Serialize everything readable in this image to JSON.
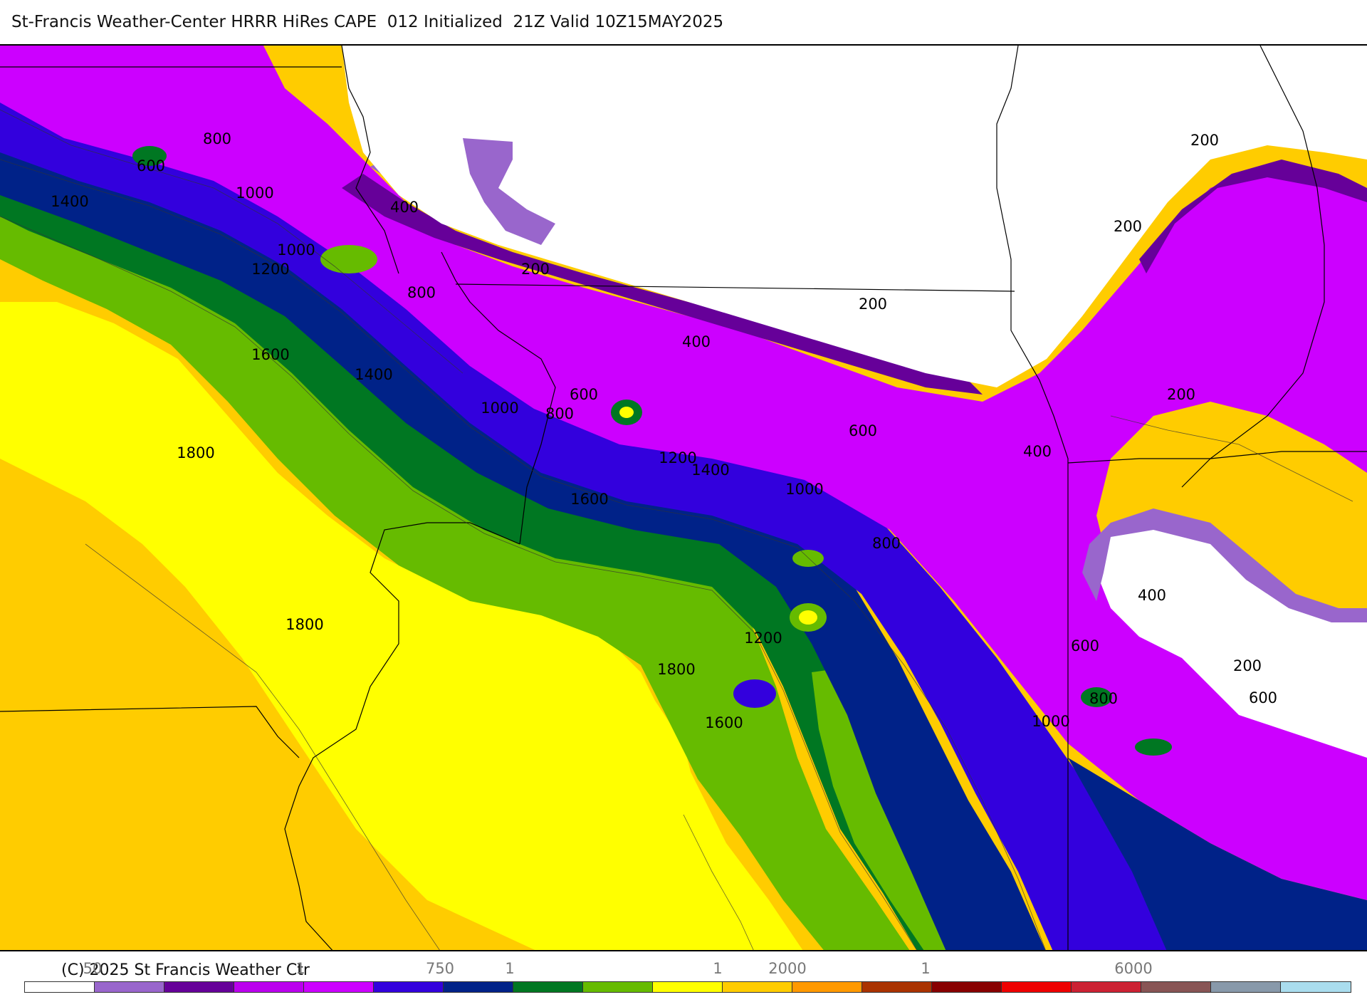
{
  "header": {
    "title": "St-Francis Weather-Center HRRR HiRes CAPE  012 Initialized  21Z Valid 10Z15MAY2025"
  },
  "map": {
    "variable": "CAPE",
    "contour_labels": [
      "800",
      "600",
      "1000",
      "1400",
      "400",
      "1000",
      "1200",
      "800",
      "200",
      "200",
      "200",
      "200",
      "1600",
      "1400",
      "1000",
      "800",
      "600",
      "400",
      "1800",
      "1200",
      "1400",
      "1600",
      "1000",
      "600",
      "400",
      "800",
      "200",
      "1800",
      "1200",
      "1800",
      "1600",
      "1000",
      "800",
      "400",
      "600",
      "200",
      "600"
    ],
    "colors": {
      "lilac": "#9966cc",
      "dark_purple": "#660099",
      "magenta": "#bb00ee",
      "violet": "#cc00ff",
      "blue_violet": "#3300dd",
      "navy": "#002288",
      "dark_green": "#007722",
      "light_green": "#66bb00",
      "yellow": "#ffff00",
      "orange": "#ffcc00",
      "land_white": "#ffffff"
    }
  },
  "legend": {
    "copyright": "(C) 2025 St Francis Weather Ctr",
    "tick_labels": [
      "50",
      "1",
      "750",
      "1",
      "1",
      "2000",
      "1",
      "6000"
    ],
    "swatch_colors": [
      "#ffffff",
      "#9966cc",
      "#660099",
      "#bb00ee",
      "#cc00ff",
      "#3300dd",
      "#002288",
      "#007722",
      "#66bb00",
      "#ffff00",
      "#ffcc00",
      "#ff9900",
      "#aa3300",
      "#880000",
      "#ee0000",
      "#cc2233",
      "#885555",
      "#8899aa",
      "#aaddee"
    ]
  }
}
